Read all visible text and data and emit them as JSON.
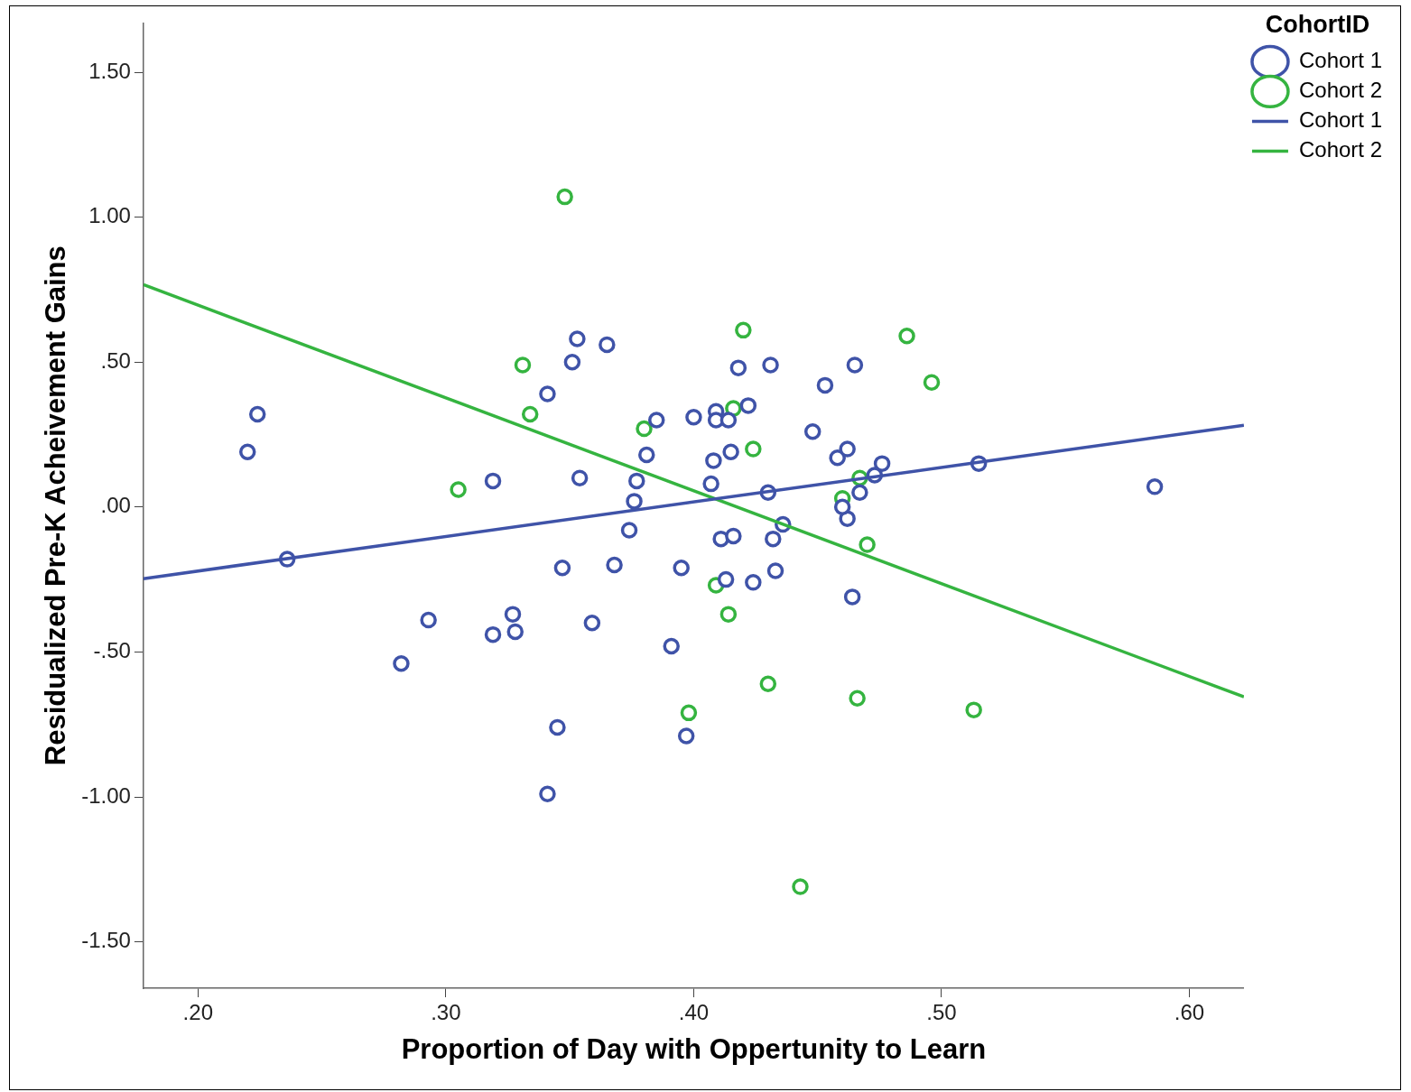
{
  "chart_data": {
    "type": "scatter",
    "xlabel": "Proportion of Day with Oppertunity to Learn",
    "ylabel": "Residualized Pre-K Acheivement Gains",
    "legend_title": "CohortID",
    "legend": "top right",
    "grid": false,
    "marker": "circle",
    "xlim": [
      0.178,
      0.622
    ],
    "ylim": [
      -1.66,
      1.67
    ],
    "xticks": [
      {
        "value": 0.2,
        "label": ".20"
      },
      {
        "value": 0.3,
        "label": ".30"
      },
      {
        "value": 0.4,
        "label": ".40"
      },
      {
        "value": 0.5,
        "label": ".50"
      },
      {
        "value": 0.6,
        "label": ".60"
      }
    ],
    "yticks": [
      {
        "value": -1.5,
        "label": "-1.50"
      },
      {
        "value": -1,
        "label": "-1.00"
      },
      {
        "value": -0.5,
        "label": "-.50"
      },
      {
        "value": 0,
        "label": ".00"
      },
      {
        "value": 0.5,
        "label": ".50"
      },
      {
        "value": 1,
        "label": "1.00"
      },
      {
        "value": 1.5,
        "label": "1.50"
      }
    ],
    "series": [
      {
        "name": "Cohort 1",
        "color": "#3f53a8",
        "x": [
          0.224,
          0.22,
          0.236,
          0.282,
          0.293,
          0.319,
          0.319,
          0.327,
          0.328,
          0.341,
          0.341,
          0.345,
          0.347,
          0.351,
          0.353,
          0.354,
          0.359,
          0.365,
          0.368,
          0.374,
          0.377,
          0.376,
          0.381,
          0.385,
          0.391,
          0.395,
          0.397,
          0.4,
          0.407,
          0.408,
          0.409,
          0.409,
          0.414,
          0.411,
          0.416,
          0.415,
          0.413,
          0.418,
          0.422,
          0.424,
          0.43,
          0.431,
          0.432,
          0.433,
          0.436,
          0.448,
          0.453,
          0.458,
          0.462,
          0.462,
          0.46,
          0.464,
          0.465,
          0.467,
          0.473,
          0.476,
          0.515,
          0.586
        ],
        "values": [
          0.32,
          0.19,
          -0.18,
          -0.54,
          -0.39,
          0.09,
          -0.44,
          -0.37,
          -0.43,
          0.39,
          -0.99,
          -0.76,
          -0.21,
          0.5,
          0.58,
          0.1,
          -0.4,
          0.56,
          -0.2,
          -0.08,
          0.09,
          0.02,
          0.18,
          0.3,
          -0.48,
          -0.21,
          -0.79,
          0.31,
          0.08,
          0.16,
          0.33,
          0.3,
          0.3,
          -0.11,
          -0.1,
          0.19,
          -0.25,
          0.48,
          0.35,
          -0.26,
          0.05,
          0.49,
          -0.11,
          -0.22,
          -0.06,
          0.26,
          0.42,
          0.17,
          0.2,
          -0.04,
          0.0,
          -0.31,
          0.49,
          0.05,
          0.11,
          0.15,
          0.15,
          0.07
        ]
      },
      {
        "name": "Cohort 2",
        "color": "#35b440",
        "x": [
          0.348,
          0.331,
          0.334,
          0.305,
          0.38,
          0.42,
          0.416,
          0.424,
          0.486,
          0.496,
          0.46,
          0.467,
          0.47,
          0.409,
          0.414,
          0.43,
          0.398,
          0.466,
          0.513,
          0.443
        ],
        "values": [
          1.07,
          0.49,
          0.32,
          0.06,
          0.27,
          0.61,
          0.34,
          0.2,
          0.59,
          0.43,
          0.03,
          0.1,
          -0.13,
          -0.27,
          -0.37,
          -0.61,
          -0.71,
          -0.66,
          -0.7,
          -1.31
        ]
      },
      {
        "name": "Cohort 1",
        "type": "line",
        "marker": "none",
        "color": "#3f53a8",
        "x": [
          0.178,
          0.622
        ],
        "values": [
          -0.247,
          0.282
        ]
      },
      {
        "name": "Cohort 2",
        "type": "line",
        "marker": "none",
        "color": "#35b440",
        "x": [
          0.178,
          0.622
        ],
        "values": [
          0.767,
          -0.655
        ]
      }
    ]
  }
}
